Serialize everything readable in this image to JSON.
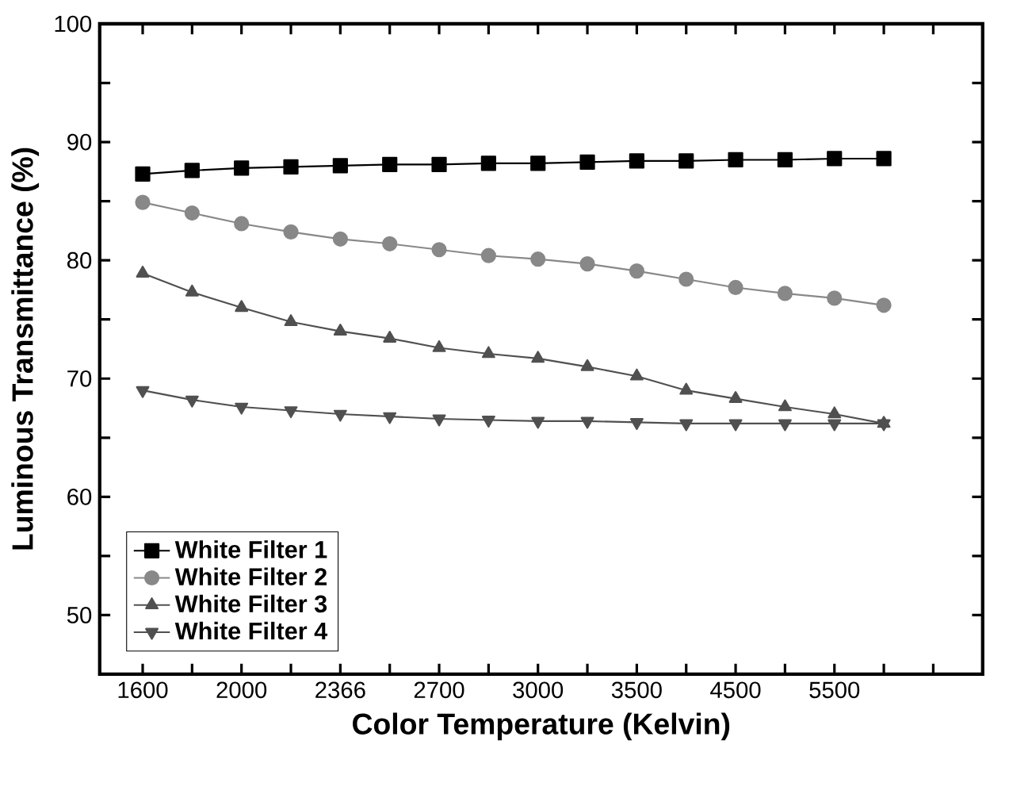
{
  "chart_data": {
    "type": "line",
    "xlabel": "Color Temperature (Kelvin)",
    "ylabel": "Luminous Transmittance (%)",
    "categories": [
      "1600",
      null,
      "2000",
      null,
      "2366",
      null,
      "2700",
      null,
      "3000",
      null,
      "3500",
      null,
      "4500",
      null,
      "5500",
      null
    ],
    "ylim": [
      45,
      100
    ],
    "yticks": [
      50,
      {
        "value": 55,
        "label": null
      },
      60,
      {
        "value": 65,
        "label": null
      },
      70,
      {
        "value": 75,
        "label": null
      },
      80,
      {
        "value": 85,
        "label": null
      },
      90,
      {
        "value": 95,
        "label": null
      },
      100
    ],
    "legend": "bottom left",
    "grid": false,
    "series": [
      {
        "name": "White Filter 1",
        "color": "#000000",
        "marker": "square",
        "values": [
          87.3,
          87.6,
          87.8,
          87.9,
          88.0,
          88.1,
          88.1,
          88.2,
          88.2,
          88.3,
          88.4,
          88.4,
          88.5,
          88.5,
          88.6,
          88.6
        ]
      },
      {
        "name": "White Filter 2",
        "color": "#888888",
        "marker": "circle",
        "values": [
          84.9,
          84.0,
          83.1,
          82.4,
          81.8,
          81.4,
          80.9,
          80.4,
          80.1,
          79.7,
          79.1,
          78.4,
          77.7,
          77.2,
          76.8,
          76.2
        ]
      },
      {
        "name": "White Filter 3",
        "color": "#505050",
        "marker": "triangle",
        "values": [
          78.9,
          77.3,
          76.0,
          74.8,
          74.0,
          73.4,
          72.6,
          72.1,
          71.7,
          71.0,
          70.2,
          69.0,
          68.3,
          67.6,
          67.0,
          66.2
        ]
      },
      {
        "name": "White Filter 4",
        "color": "#505050",
        "marker": "triangle down",
        "values": [
          69.0,
          68.2,
          67.6,
          67.3,
          67.0,
          66.8,
          66.6,
          66.5,
          66.4,
          66.4,
          66.3,
          66.2,
          66.2,
          66.2,
          66.2,
          66.2
        ]
      }
    ]
  }
}
